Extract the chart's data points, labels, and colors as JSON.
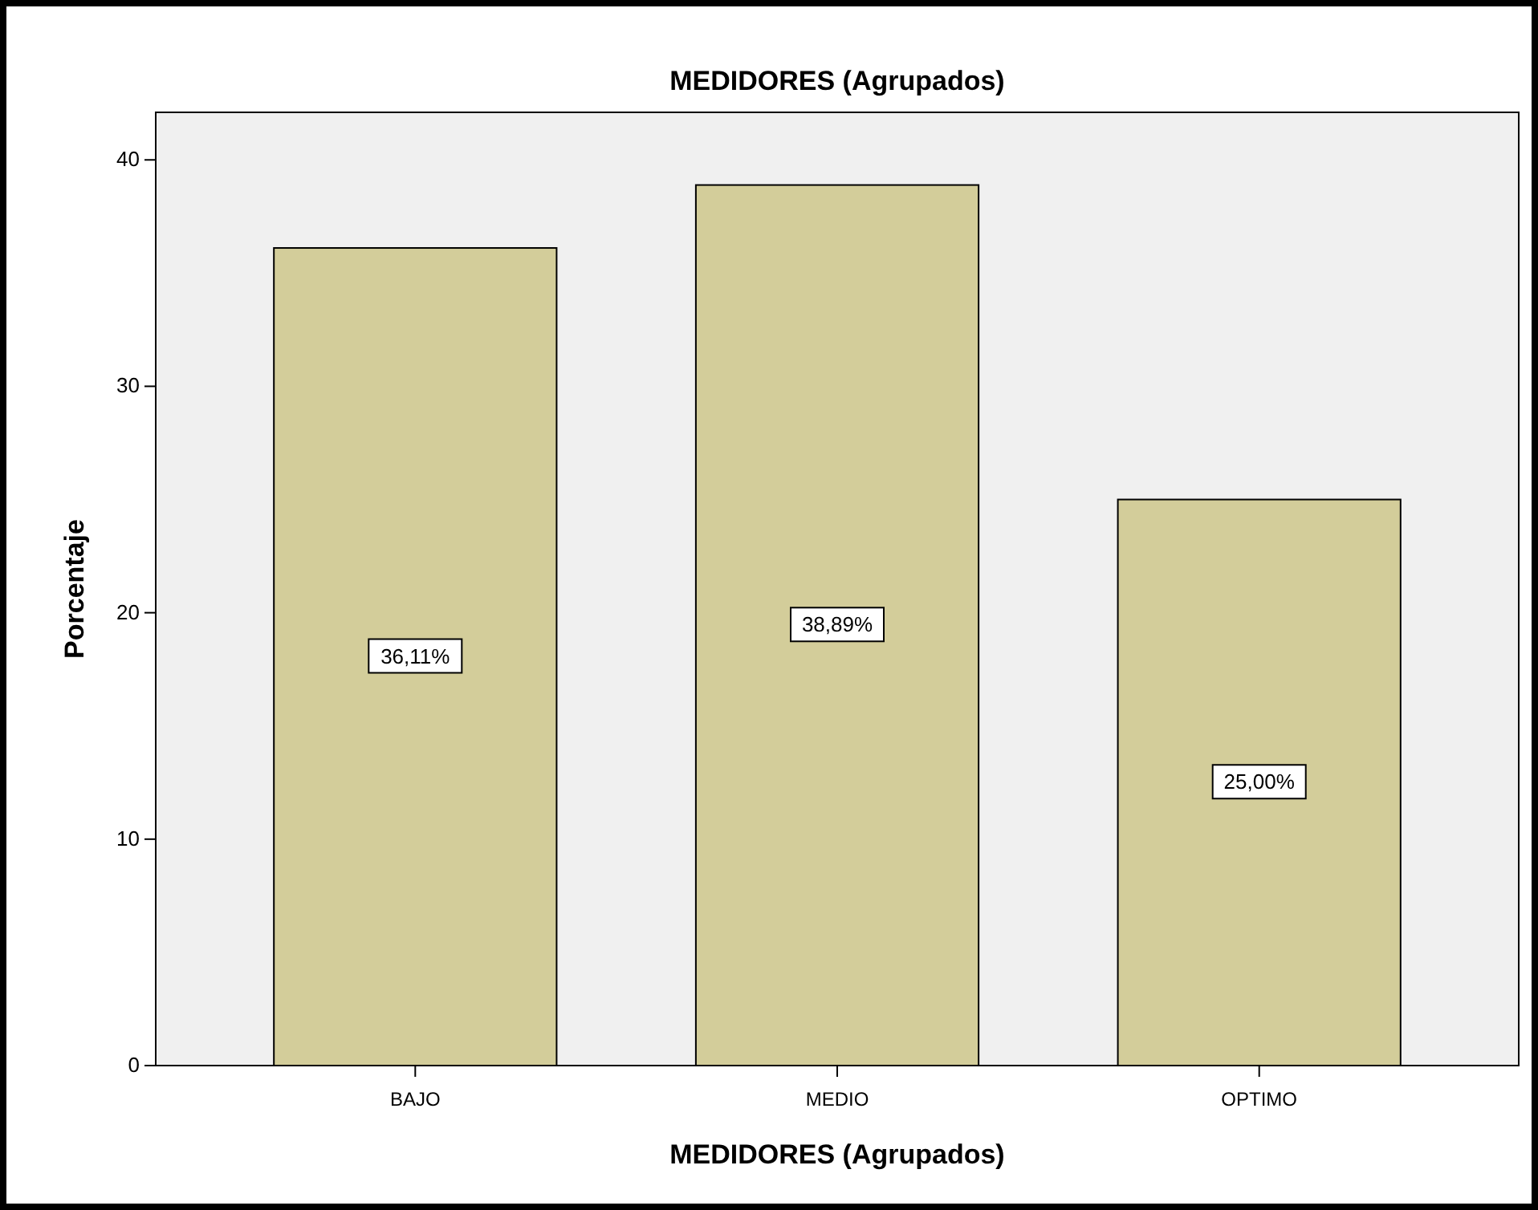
{
  "chart_data": {
    "type": "bar",
    "title": "MEDIDORES (Agrupados)",
    "xlabel": "MEDIDORES (Agrupados)",
    "ylabel": "Porcentaje",
    "categories": [
      "BAJO",
      "MEDIO",
      "OPTIMO"
    ],
    "values": [
      36.11,
      38.89,
      25.0
    ],
    "value_labels": [
      "36,11%",
      "38,89%",
      "25,00%"
    ],
    "color": "#d3cd9a",
    "ylim": [
      0,
      42.1
    ],
    "yticks": [
      0,
      10,
      20,
      30,
      40
    ],
    "grid": false
  }
}
